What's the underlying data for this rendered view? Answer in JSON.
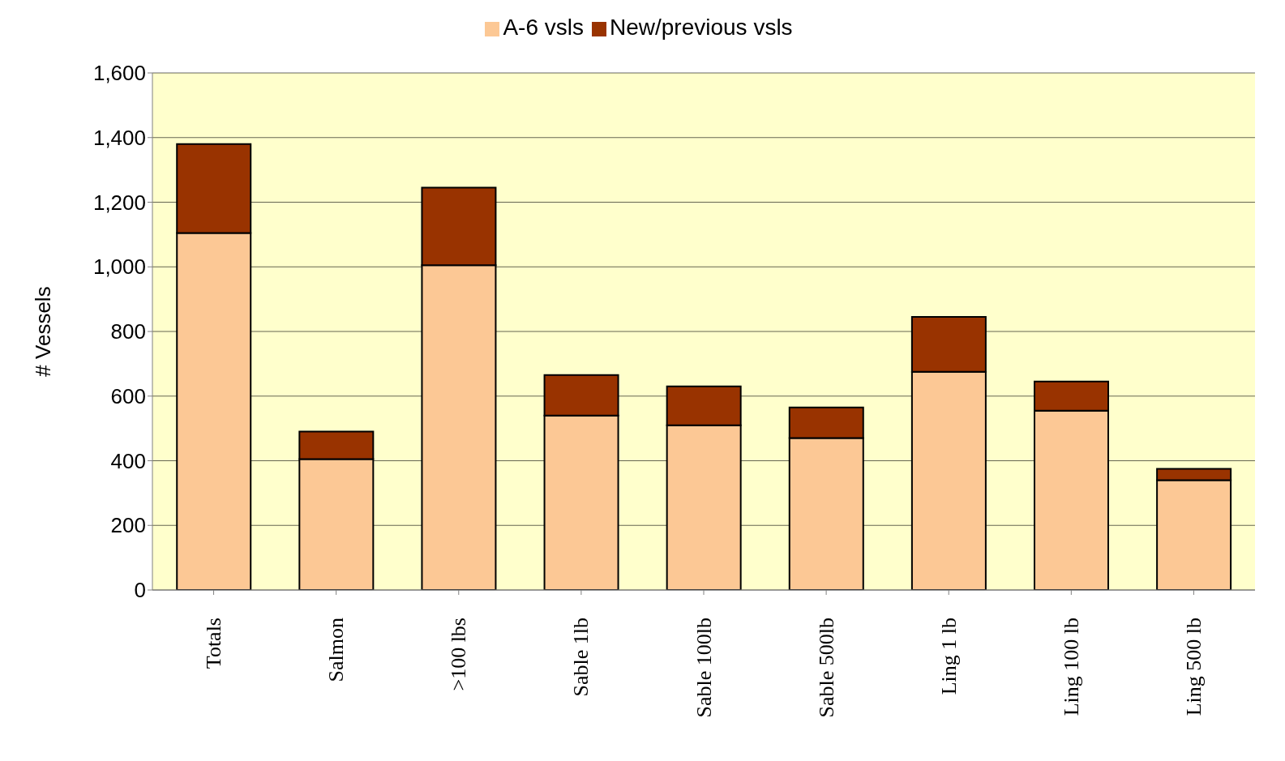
{
  "chart_data": {
    "type": "bar",
    "stacked": true,
    "ylabel": "# Vessels",
    "categories": [
      "Totals",
      "Salmon",
      ">100 lbs",
      "Sable 1lb",
      "Sable 100lb",
      "Sable 500lb",
      "Ling 1 lb",
      "Ling 100 lb",
      "Ling 500 lb"
    ],
    "series": [
      {
        "name": "A-6 vsls",
        "color": "#fcc895",
        "values": [
          1105,
          405,
          1005,
          540,
          510,
          470,
          675,
          555,
          340
        ]
      },
      {
        "name": "New/previous vsls",
        "color": "#993300",
        "values": [
          275,
          85,
          240,
          125,
          120,
          95,
          170,
          90,
          35
        ]
      }
    ],
    "ylim": [
      0,
      1600
    ],
    "yticks": [
      {
        "value": 0,
        "label": "0"
      },
      {
        "value": 200,
        "label": "200"
      },
      {
        "value": 400,
        "label": "400"
      },
      {
        "value": 600,
        "label": "600"
      },
      {
        "value": 800,
        "label": "800"
      },
      {
        "value": 1000,
        "label": "1,000"
      },
      {
        "value": 1200,
        "label": "1,200"
      },
      {
        "value": 1400,
        "label": "1,400"
      },
      {
        "value": 1600,
        "label": "1,600"
      }
    ],
    "grid": "y",
    "legend": "top"
  }
}
